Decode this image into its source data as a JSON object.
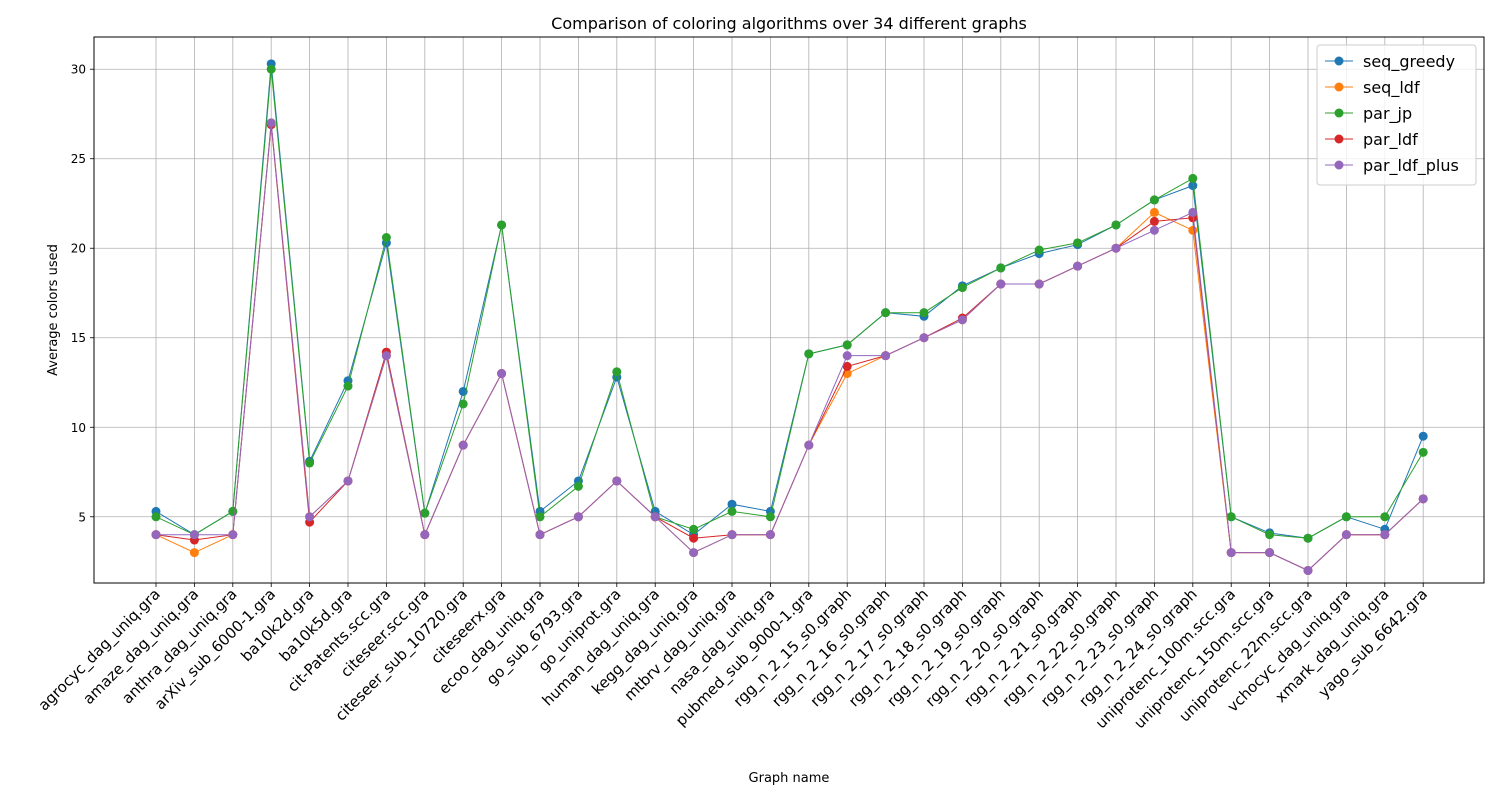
{
  "chart_data": {
    "type": "line",
    "title": "Comparison of coloring algorithms over 34 different graphs",
    "xlabel": "Graph name",
    "ylabel": "Average colors used",
    "ylim": [
      1.3,
      31.8
    ],
    "yticks": [
      5,
      10,
      15,
      20,
      25,
      30
    ],
    "grid": true,
    "legend_position": "top-right",
    "categories": [
      "agrocyc_dag_uniq.gra",
      "amaze_dag_uniq.gra",
      "anthra_dag_uniq.gra",
      "arXiv_sub_6000-1.gra",
      "ba10k2d.gra",
      "ba10k5d.gra",
      "cit-Patents.scc.gra",
      "citeseer.scc.gra",
      "citeseer_sub_10720.gra",
      "citeseerx.gra",
      "ecoo_dag_uniq.gra",
      "go_sub_6793.gra",
      "go_uniprot.gra",
      "human_dag_uniq.gra",
      "kegg_dag_uniq.gra",
      "mtbrv_dag_uniq.gra",
      "nasa_dag_uniq.gra",
      "pubmed_sub_9000-1.gra",
      "rgg_n_2_15_s0.graph",
      "rgg_n_2_16_s0.graph",
      "rgg_n_2_17_s0.graph",
      "rgg_n_2_18_s0.graph",
      "rgg_n_2_19_s0.graph",
      "rgg_n_2_20_s0.graph",
      "rgg_n_2_21_s0.graph",
      "rgg_n_2_22_s0.graph",
      "rgg_n_2_23_s0.graph",
      "rgg_n_2_24_s0.graph",
      "uniprotenc_100m.scc.gra",
      "uniprotenc_150m.scc.gra",
      "uniprotenc_22m.scc.gra",
      "vchocyc_dag_uniq.gra",
      "xmark_dag_uniq.gra",
      "yago_sub_6642.gra"
    ],
    "series": [
      {
        "name": "seq_greedy",
        "color": "#1f77b4",
        "values": [
          5.3,
          4.0,
          5.3,
          30.3,
          8.1,
          12.6,
          20.3,
          5.2,
          12.0,
          21.3,
          5.3,
          7.0,
          12.8,
          5.3,
          4.0,
          5.7,
          5.3,
          14.1,
          14.6,
          16.4,
          16.2,
          17.9,
          18.9,
          19.7,
          20.2,
          21.3,
          22.7,
          23.5,
          5.0,
          4.1,
          3.8,
          5.0,
          4.3,
          9.5
        ]
      },
      {
        "name": "seq_ldf",
        "color": "#ff7f0e",
        "values": [
          4.0,
          3.0,
          4.0,
          27.0,
          5.0,
          7.0,
          14.0,
          4.0,
          9.0,
          13.0,
          4.0,
          5.0,
          7.0,
          5.0,
          3.0,
          4.0,
          4.0,
          9.0,
          13.0,
          14.0,
          15.0,
          16.0,
          18.0,
          18.0,
          19.0,
          20.0,
          22.0,
          21.0,
          3.0,
          3.0,
          2.0,
          4.0,
          4.0,
          6.0
        ]
      },
      {
        "name": "par_jp",
        "color": "#2ca02c",
        "values": [
          5.0,
          4.0,
          5.3,
          30.0,
          8.0,
          12.3,
          20.6,
          5.2,
          11.3,
          21.3,
          5.0,
          6.7,
          13.1,
          5.0,
          4.3,
          5.3,
          5.0,
          14.1,
          14.6,
          16.4,
          16.4,
          17.8,
          18.9,
          19.9,
          20.3,
          21.3,
          22.7,
          23.9,
          5.0,
          4.0,
          3.8,
          5.0,
          5.0,
          8.6
        ]
      },
      {
        "name": "par_ldf",
        "color": "#d62728",
        "values": [
          4.0,
          3.7,
          4.0,
          26.9,
          4.7,
          7.0,
          14.2,
          4.0,
          9.0,
          13.0,
          4.0,
          5.0,
          7.0,
          5.0,
          3.8,
          4.0,
          4.0,
          9.0,
          13.4,
          14.0,
          15.0,
          16.1,
          18.0,
          18.0,
          19.0,
          20.0,
          21.5,
          21.7,
          3.0,
          3.0,
          2.0,
          4.0,
          4.0,
          6.0
        ]
      },
      {
        "name": "par_ldf_plus",
        "color": "#9467bd",
        "values": [
          4.0,
          4.0,
          4.0,
          27.0,
          5.0,
          7.0,
          14.0,
          4.0,
          9.0,
          13.0,
          4.0,
          5.0,
          7.0,
          5.0,
          3.0,
          4.0,
          4.0,
          9.0,
          14.0,
          14.0,
          15.0,
          16.0,
          18.0,
          18.0,
          19.0,
          20.0,
          21.0,
          22.0,
          3.0,
          3.0,
          2.0,
          4.0,
          4.0,
          6.0
        ]
      }
    ]
  }
}
